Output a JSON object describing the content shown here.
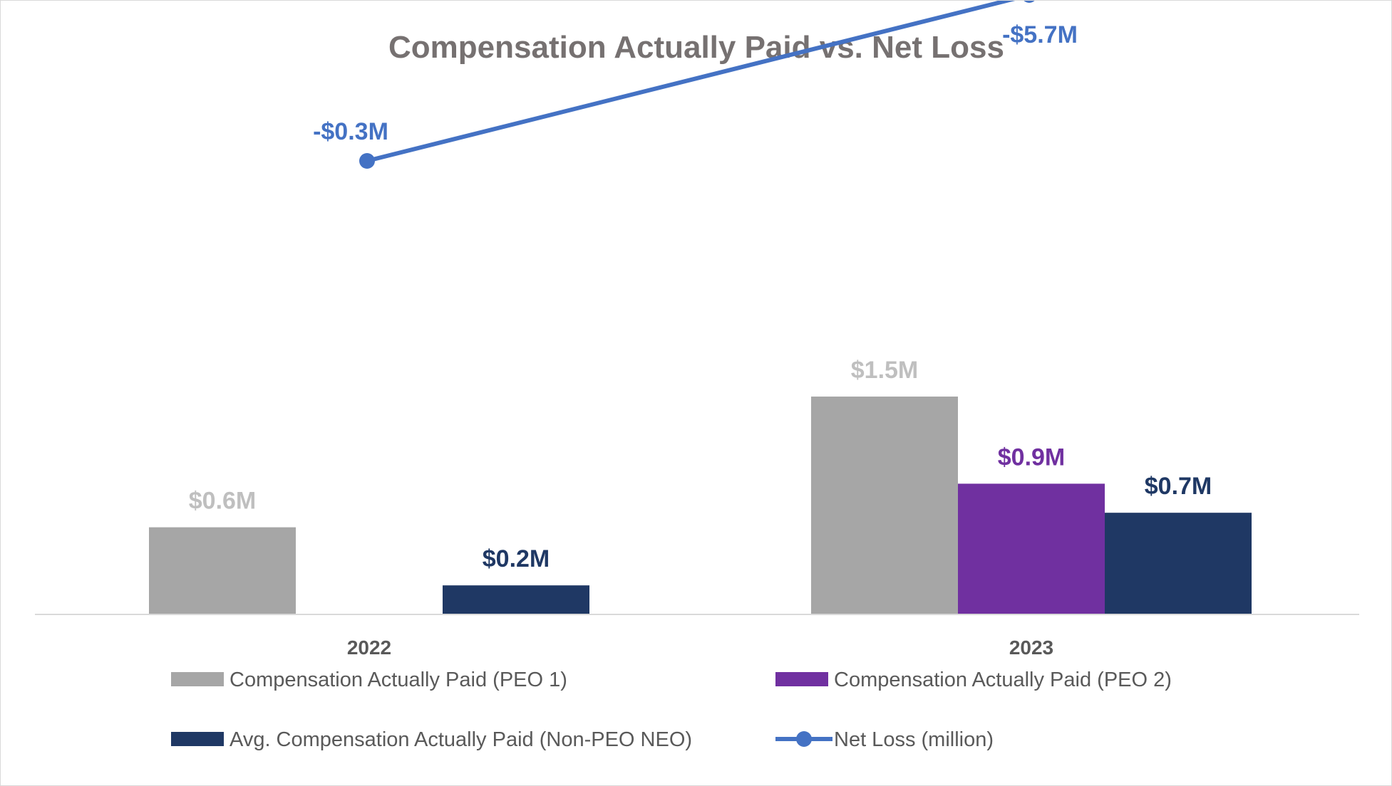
{
  "chart_data": {
    "type": "bar",
    "title": "Compensation Actually Paid vs. Net Loss",
    "categories": [
      "2022",
      "2023"
    ],
    "series": [
      {
        "name": "Compensation Actually Paid (PEO 1)",
        "type": "bar",
        "color": "#a6a6a6",
        "label_color": "#bfbfbf",
        "values": [
          0.6,
          1.5
        ],
        "labels": [
          "$0.6M",
          "$1.5M"
        ]
      },
      {
        "name": "Compensation Actually Paid (PEO 2)",
        "type": "bar",
        "color": "#7030a0",
        "label_color": "#7030a0",
        "values": [
          null,
          0.9
        ],
        "labels": [
          "",
          "$0.9M"
        ]
      },
      {
        "name": "Avg. Compensation Actually Paid (Non-PEO NEO)",
        "type": "bar",
        "color": "#1f3864",
        "label_color": "#1f3864",
        "values": [
          0.2,
          0.7
        ],
        "labels": [
          "$0.2M",
          "$0.7M"
        ]
      },
      {
        "name": "Net Loss (million)",
        "type": "line",
        "color": "#4472c4",
        "label_color": "#4472c4",
        "values": [
          -0.3,
          -5.7
        ],
        "labels": [
          "-$0.3M",
          "-$5.7M"
        ]
      }
    ],
    "legend_position": "bottom",
    "grid": false
  }
}
